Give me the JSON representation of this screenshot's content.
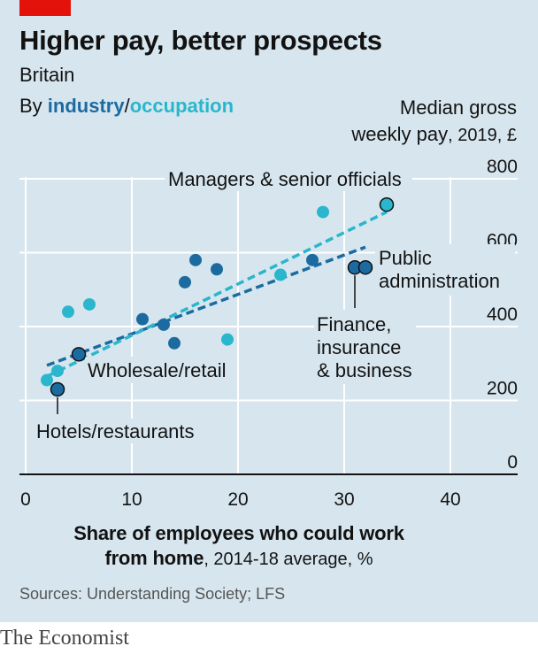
{
  "header": {
    "title": "Higher pay, better prospects",
    "subtitle": "Britain",
    "by_prefix": "By ",
    "by_industry": "industry",
    "by_sep": "/",
    "by_occupation": "occupation"
  },
  "y_axis_title": {
    "line1": "Median gross",
    "line2_main": "weekly pay",
    "line2_unit": ", 2019, £"
  },
  "x_axis_title": {
    "line1": "Share of employees who could work",
    "line2_main": "from home",
    "line2_unit": ", 2014-18 average, %"
  },
  "source": "Sources: Understanding Society; LFS",
  "brand": "The Economist",
  "colors": {
    "industry": "#1c6ba0",
    "occupation": "#2ab6cc",
    "background": "#d7e6ee",
    "accent": "#e3120b"
  },
  "chart_data": {
    "type": "scatter",
    "xlim": [
      0,
      46
    ],
    "ylim": [
      0,
      800
    ],
    "x_ticks": [
      0,
      10,
      20,
      30,
      40
    ],
    "y_ticks": [
      0,
      200,
      400,
      600,
      800
    ],
    "grid": true,
    "series": [
      {
        "name": "industry",
        "color": "#1c6ba0",
        "points": [
          {
            "x": 3,
            "y": 230,
            "label": "Hotels/restaurants",
            "outlined": true
          },
          {
            "x": 5,
            "y": 325,
            "label": "Wholesale/retail",
            "outlined": true
          },
          {
            "x": 11,
            "y": 420
          },
          {
            "x": 13,
            "y": 405
          },
          {
            "x": 14,
            "y": 355
          },
          {
            "x": 15,
            "y": 520
          },
          {
            "x": 16,
            "y": 580
          },
          {
            "x": 18,
            "y": 555
          },
          {
            "x": 27,
            "y": 580
          },
          {
            "x": 31,
            "y": 560,
            "label": "Finance, insurance & business",
            "outlined": true
          },
          {
            "x": 32,
            "y": 560,
            "label": "Public administration",
            "outlined": true
          }
        ],
        "trend": {
          "x": [
            2,
            32
          ],
          "y": [
            295,
            615
          ]
        }
      },
      {
        "name": "occupation",
        "color": "#2ab6cc",
        "points": [
          {
            "x": 2,
            "y": 255
          },
          {
            "x": 3,
            "y": 280
          },
          {
            "x": 4,
            "y": 440
          },
          {
            "x": 6,
            "y": 460
          },
          {
            "x": 19,
            "y": 365
          },
          {
            "x": 24,
            "y": 540
          },
          {
            "x": 28,
            "y": 710
          },
          {
            "x": 34,
            "y": 730,
            "label": "Managers & senior officials",
            "outlined": true
          }
        ],
        "trend": {
          "x": [
            2,
            34
          ],
          "y": [
            265,
            710
          ]
        }
      }
    ],
    "annotations": {
      "managers": "Managers & senior officials",
      "public1": "Public",
      "public2": "administration",
      "finance1": "Finance,",
      "finance2": "insurance",
      "finance3": "& business",
      "wholesale": "Wholesale/retail",
      "hotels": "Hotels/restaurants"
    }
  }
}
